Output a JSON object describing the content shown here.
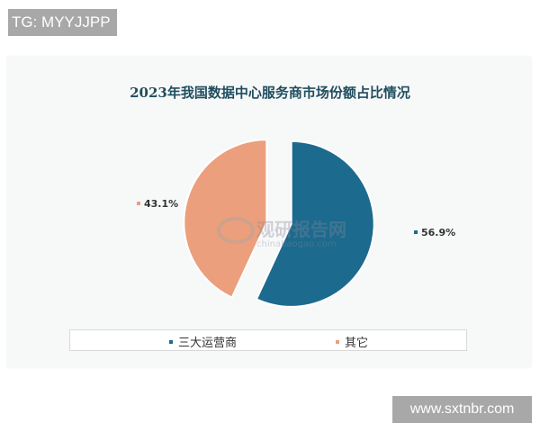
{
  "watermarks": {
    "top_left": "TG: MYYJJPP",
    "bottom_right": "www.sxtnbr.com",
    "logo_text": "观研报告网",
    "logo_url": "chinabaogao.com"
  },
  "chart_data": {
    "type": "pie",
    "title": "2023年我国数据中心服务商市场份额占比情况",
    "categories": [
      "三大运营商",
      "其它"
    ],
    "values": [
      56.9,
      43.1
    ],
    "labels": [
      "56.9%",
      "43.1%"
    ],
    "colors": [
      "#1c6a8e",
      "#ec9f7c"
    ],
    "exploded": true,
    "legend_position": "bottom"
  }
}
